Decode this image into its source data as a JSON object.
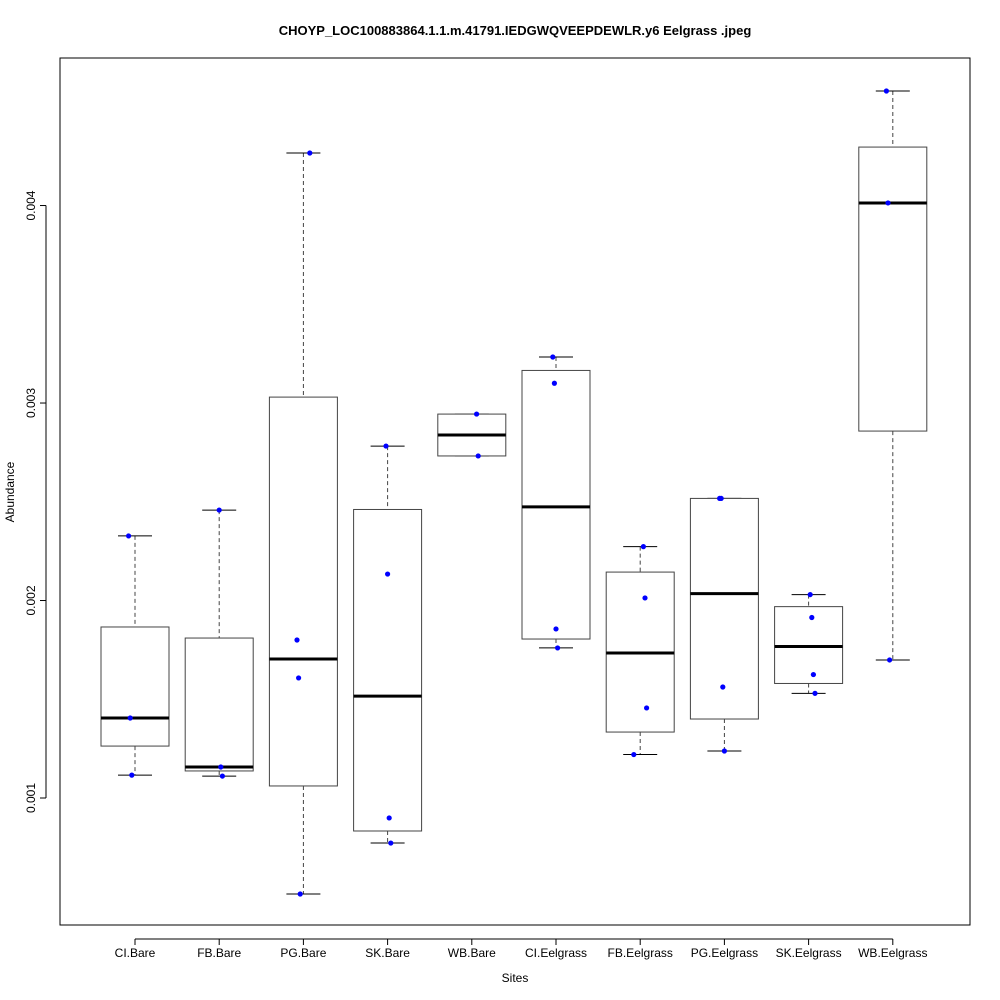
{
  "chart_data": {
    "type": "boxplot",
    "title": "CHOYP_LOC100883864.1.1.m.41791.IEDGWQVEEPDEWLR.y6 Eelgrass .jpeg",
    "xlabel": "Sites",
    "ylabel": "Abundance",
    "ylim": [
      0.000357,
      0.004747
    ],
    "yticks": [
      0.001,
      0.002,
      0.003,
      0.004
    ],
    "ytick_labels": [
      "0.001",
      "0.002",
      "0.003",
      "0.004"
    ],
    "grid": false,
    "point_color": "#0000ff",
    "categories": [
      "CI.Bare",
      "FB.Bare",
      "PG.Bare",
      "SK.Bare",
      "WB.Bare",
      "CI.Eelgrass",
      "FB.Eelgrass",
      "PG.Eelgrass",
      "SK.Eelgrass",
      "WB.Eelgrass"
    ],
    "boxes": [
      {
        "min": 0.001116,
        "q1": 0.001263,
        "median": 0.001405,
        "q3": 0.001866,
        "max": 0.002327,
        "points": [
          0.002327,
          0.001405,
          0.001116
        ]
      },
      {
        "min": 0.001111,
        "q1": 0.001137,
        "median": 0.001157,
        "q3": 0.00181,
        "max": 0.002458,
        "points": [
          0.002458,
          0.001157,
          0.001111
        ]
      },
      {
        "min": 0.000514,
        "q1": 0.001061,
        "median": 0.001704,
        "q3": 0.00303,
        "max": 0.004266,
        "points": [
          0.004266,
          0.0018,
          0.001608,
          0.000514
        ]
      },
      {
        "min": 0.000772,
        "q1": 0.000833,
        "median": 0.001516,
        "q3": 0.002461,
        "max": 0.002782,
        "points": [
          0.002782,
          0.002134,
          0.000899,
          0.000772
        ]
      },
      {
        "min": 0.002732,
        "q1": 0.002732,
        "median": 0.002838,
        "q3": 0.002944,
        "max": 0.002944,
        "points": [
          0.002944,
          0.002732
        ]
      },
      {
        "min": 0.00176,
        "q1": 0.001805,
        "median": 0.002474,
        "q3": 0.003165,
        "max": 0.003233,
        "points": [
          0.003233,
          0.0031,
          0.001856,
          0.00176
        ]
      },
      {
        "min": 0.00122,
        "q1": 0.001334,
        "median": 0.001734,
        "q3": 0.002144,
        "max": 0.002273,
        "points": [
          0.002273,
          0.002013,
          0.001456,
          0.00122
        ]
      },
      {
        "min": 0.001238,
        "q1": 0.0014,
        "median": 0.002035,
        "q3": 0.002517,
        "max": 0.002517,
        "points": [
          0.002517,
          0.002517,
          0.001562,
          0.001238
        ]
      },
      {
        "min": 0.00153,
        "q1": 0.00158,
        "median": 0.001767,
        "q3": 0.001969,
        "max": 0.00203,
        "points": [
          0.00203,
          0.001914,
          0.001625,
          0.00153
        ]
      },
      {
        "min": 0.001699,
        "q1": 0.002858,
        "median": 0.004013,
        "q3": 0.004296,
        "max": 0.00458,
        "points": [
          0.00458,
          0.004013,
          0.001699
        ]
      }
    ]
  }
}
